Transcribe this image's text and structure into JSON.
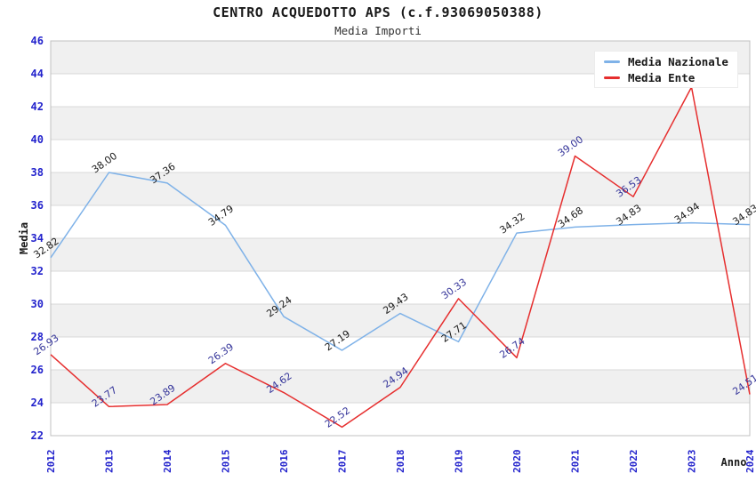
{
  "chart": {
    "title": "CENTRO ACQUEDOTTO APS (c.f.93069050388)",
    "subtitle": "Media Importi"
  },
  "chart_data": {
    "type": "line",
    "x": [
      "2012",
      "2013",
      "2014",
      "2015",
      "2016",
      "2017",
      "2018",
      "2019",
      "2020",
      "2021",
      "2022",
      "2023",
      "2024"
    ],
    "xlabel": "Anno",
    "ylabel": "Media",
    "ylim": [
      22,
      46
    ],
    "ytick_step": 2,
    "grid": "horizontal-bands",
    "legend_position": "top-right",
    "band_colors": [
      "#ffffff",
      "#f0f0f0"
    ],
    "grid_color": "#d9d9d9",
    "border_color": "#c0c0c0",
    "tick_color": "#2222cc",
    "series": [
      {
        "name": "Media Nazionale",
        "color": "#7fb2e8",
        "label_color": "#1a1a1a",
        "values": [
          32.82,
          38.0,
          37.36,
          34.79,
          29.24,
          27.19,
          29.43,
          27.71,
          34.32,
          34.68,
          34.83,
          34.94,
          34.83
        ],
        "labels": [
          "32.82",
          "38.00",
          "37.36",
          "34.79",
          "29.24",
          "27.19",
          "29.43",
          "27.71",
          "34.32",
          "34.68",
          "34.83",
          "34.94",
          "34.83"
        ]
      },
      {
        "name": "Media Ente",
        "color": "#e62e2e",
        "label_color": "#333399",
        "values": [
          26.93,
          23.77,
          23.89,
          26.39,
          24.62,
          22.52,
          24.94,
          30.33,
          26.74,
          39.0,
          36.53,
          43.19,
          24.51
        ],
        "labels": [
          "26.93",
          "23.77",
          "23.89",
          "26.39",
          "24.62",
          "22.52",
          "24.94",
          "30.33",
          "26.74",
          "39.00",
          "36.53",
          null,
          "24.51"
        ]
      }
    ]
  }
}
